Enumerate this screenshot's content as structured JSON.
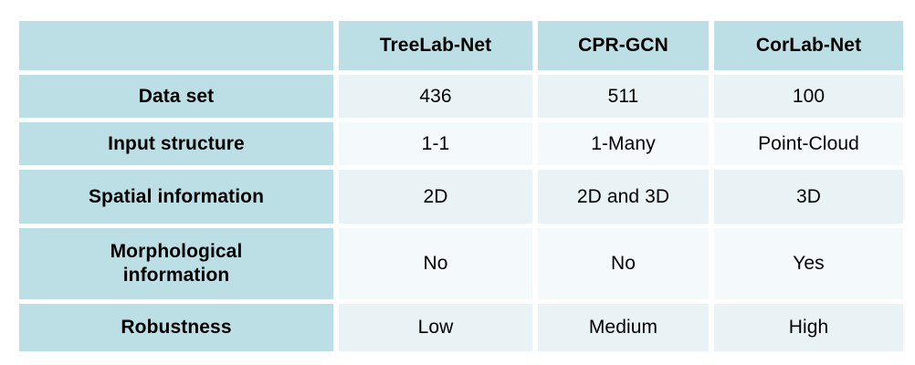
{
  "table": {
    "columns": [
      "",
      "TreeLab-Net",
      "CPR-GCN",
      "CorLab-Net"
    ],
    "rows": [
      {
        "label": "Data set",
        "values": [
          "436",
          "511",
          "100"
        ]
      },
      {
        "label": "Input structure",
        "values": [
          "1-1",
          "1-Many",
          "Point-Cloud"
        ]
      },
      {
        "label": "Spatial information",
        "values": [
          "2D",
          "2D and 3D",
          "3D"
        ]
      },
      {
        "label": "Morphological information",
        "values": [
          "No",
          "No",
          "Yes"
        ]
      },
      {
        "label": "Robustness",
        "values": [
          "Low",
          "Medium",
          "High"
        ]
      }
    ]
  },
  "colors": {
    "header_teal": "#bcdfe5",
    "data_row_odd": "#e9f2f5",
    "data_row_even": "#f4f9fb",
    "text": "#000000",
    "background": "#ffffff"
  },
  "chart_data": {
    "type": "table",
    "title": "",
    "columns": [
      "",
      "TreeLab-Net",
      "CPR-GCN",
      "CorLab-Net"
    ],
    "row_labels": [
      "Data set",
      "Input structure",
      "Spatial information",
      "Morphological information",
      "Robustness"
    ],
    "cells": [
      [
        "436",
        "511",
        "100"
      ],
      [
        "1-1",
        "1-Many",
        "Point-Cloud"
      ],
      [
        "2D",
        "2D and 3D",
        "3D"
      ],
      [
        "No",
        "No",
        "Yes"
      ],
      [
        "Low",
        "Medium",
        "High"
      ]
    ]
  }
}
